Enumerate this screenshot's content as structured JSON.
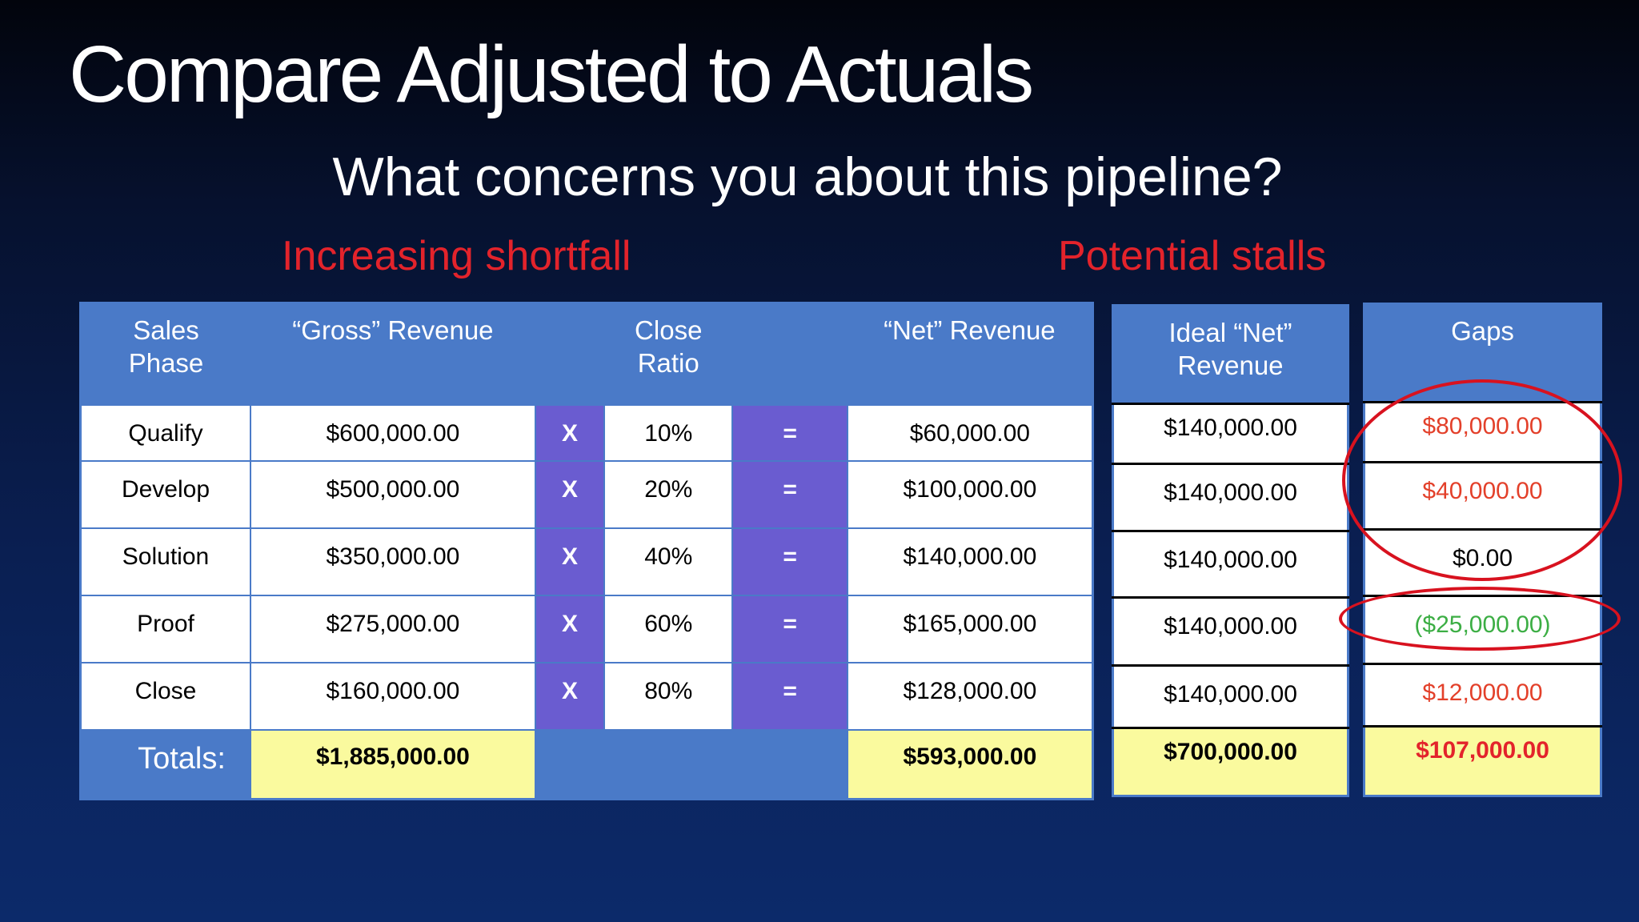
{
  "slide": {
    "title": "Compare Adjusted to Actuals",
    "subtitle": "What concerns you about this pipeline?",
    "callout_left": "Increasing shortfall",
    "callout_right": "Potential stalls"
  },
  "pipeline_table": {
    "headers": {
      "sales_phase": "Sales\nPhase",
      "gross_revenue": "“Gross” Revenue",
      "close_ratio": "Close\nRatio",
      "net_revenue": "“Net” Revenue"
    },
    "multiply_symbol": "X",
    "equals_symbol": "=",
    "rows": [
      {
        "phase": "Qualify",
        "gross": "$600,000.00",
        "ratio": "10%",
        "net": "$60,000.00"
      },
      {
        "phase": "Develop",
        "gross": "$500,000.00",
        "ratio": "20%",
        "net": "$100,000.00"
      },
      {
        "phase": "Solution",
        "gross": "$350,000.00",
        "ratio": "40%",
        "net": "$140,000.00"
      },
      {
        "phase": "Proof",
        "gross": "$275,000.00",
        "ratio": "60%",
        "net": "$165,000.00"
      },
      {
        "phase": "Close",
        "gross": "$160,000.00",
        "ratio": "80%",
        "net": "$128,000.00"
      }
    ],
    "totals_label": "Totals:",
    "gross_total": "$1,885,000.00",
    "net_total": "$593,000.00"
  },
  "ideal_table": {
    "header": "Ideal “Net”\nRevenue",
    "rows": [
      "$140,000.00",
      "$140,000.00",
      "$140,000.00",
      "$140,000.00",
      "$140,000.00"
    ],
    "total": "$700,000.00"
  },
  "gaps_table": {
    "header": "Gaps",
    "rows": [
      "$80,000.00",
      "$40,000.00",
      "$0.00",
      "($25,000.00)",
      "$12,000.00"
    ],
    "total": "$107,000.00"
  },
  "colors": {
    "table_blue": "#4a7ac8",
    "operator_purple": "#6a5cd0",
    "totals_yellow": "#fafa9e",
    "alert_red": "#e3232b",
    "gap_orange_red": "#e3402a",
    "gap_green": "#3cae44",
    "annotation_circle": "#d8121f"
  }
}
